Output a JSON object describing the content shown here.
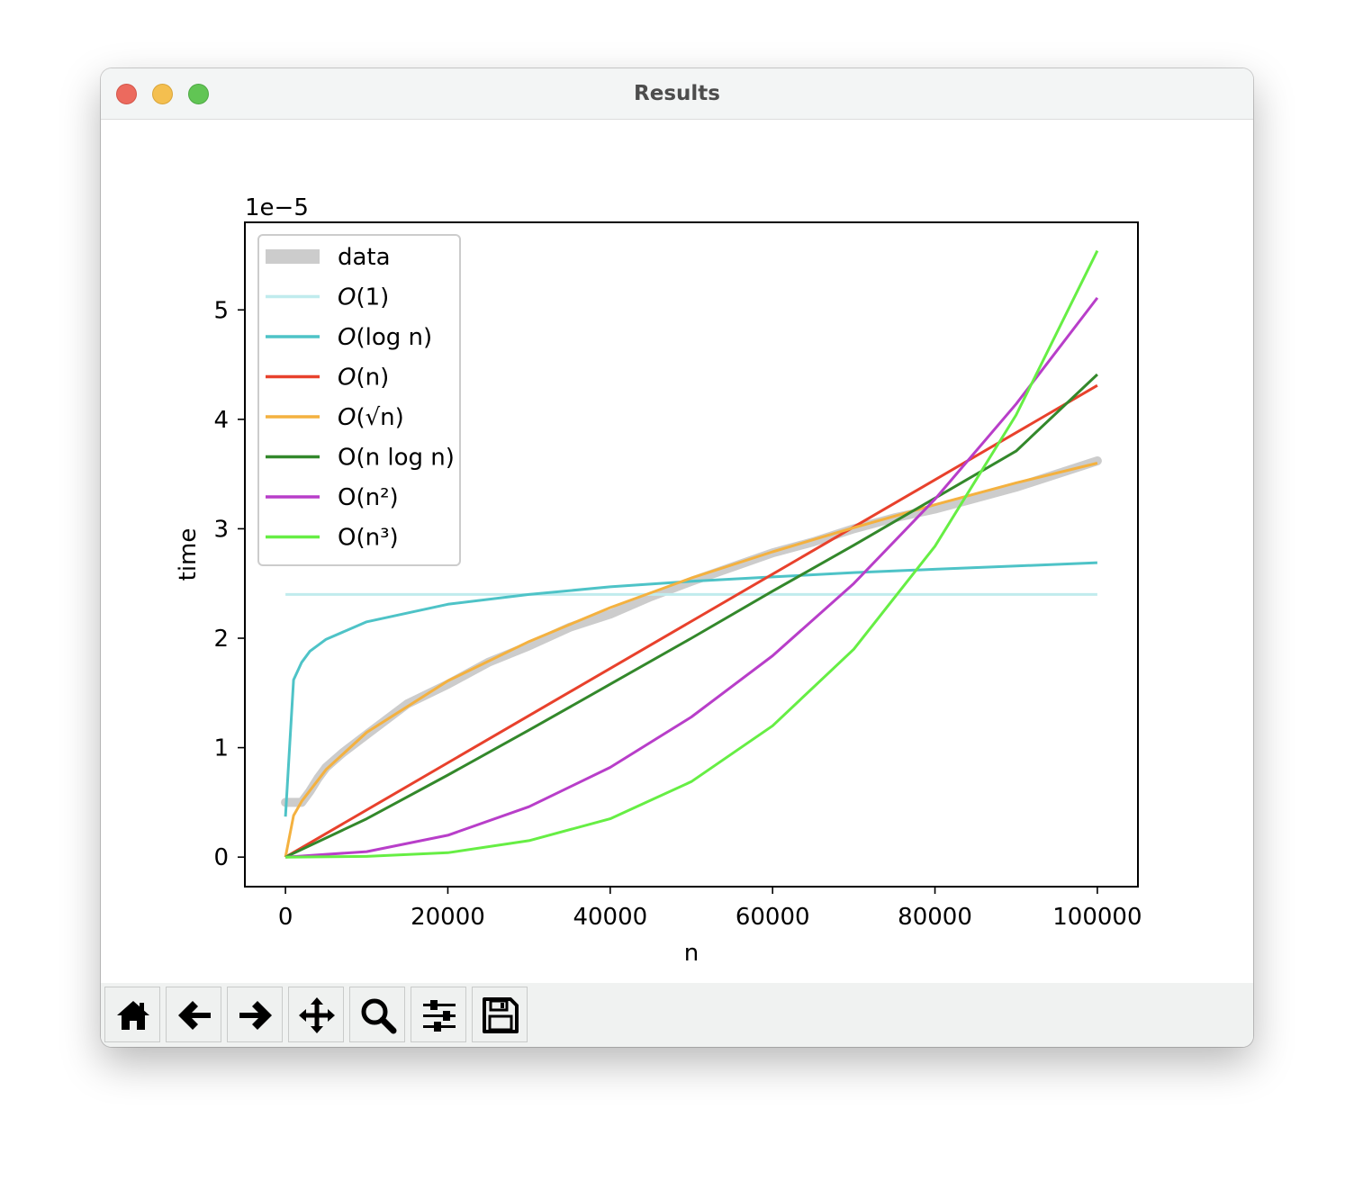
{
  "window": {
    "title": "Results"
  },
  "toolbar": {
    "buttons": [
      {
        "name": "home-button",
        "icon": "home-icon"
      },
      {
        "name": "back-button",
        "icon": "arrow-left-icon"
      },
      {
        "name": "forward-button",
        "icon": "arrow-right-icon"
      },
      {
        "name": "pan-button",
        "icon": "move-icon"
      },
      {
        "name": "zoom-button",
        "icon": "magnifier-icon"
      },
      {
        "name": "configure-subplots-button",
        "icon": "sliders-icon"
      },
      {
        "name": "save-button",
        "icon": "floppy-disk-icon"
      }
    ]
  },
  "chart_data": {
    "type": "line",
    "xlabel": "n",
    "ylabel": "time",
    "offset_text": "1e−5",
    "x_ticks": [
      "0",
      "20000",
      "40000",
      "60000",
      "80000",
      "100000"
    ],
    "y_ticks": [
      "0",
      "1",
      "2",
      "3",
      "4",
      "5"
    ],
    "xlim": [
      -5000,
      105000
    ],
    "ylim": [
      -0.27,
      5.8
    ],
    "y_scale_note": "values in units of 1e-5",
    "legend_position": "upper-left",
    "legend": [
      {
        "prefix": "",
        "label": "data"
      },
      {
        "prefix": "O",
        "label": "(1)"
      },
      {
        "prefix": "O",
        "label": "(log n)"
      },
      {
        "prefix": "O",
        "label": "(n)"
      },
      {
        "prefix": "O",
        "label": "(√n)"
      },
      {
        "prefix": "O",
        "label": "(n log n)"
      },
      {
        "prefix": "O",
        "label": "(n²)"
      },
      {
        "prefix": "O",
        "label": "(n³)"
      }
    ],
    "series": [
      {
        "name": "data",
        "color": "#cccccc",
        "width": 10,
        "x": [
          0,
          1000,
          2000,
          3000,
          4000,
          5000,
          7000,
          10000,
          15000,
          20000,
          25000,
          30000,
          35000,
          40000,
          45000,
          50000,
          55000,
          60000,
          65000,
          70000,
          75000,
          80000,
          85000,
          90000,
          95000,
          100000
        ],
        "y": [
          0.5,
          0.5,
          0.5,
          0.6,
          0.72,
          0.82,
          0.95,
          1.12,
          1.4,
          1.58,
          1.78,
          1.93,
          2.1,
          2.22,
          2.38,
          2.52,
          2.65,
          2.78,
          2.88,
          3.0,
          3.1,
          3.18,
          3.28,
          3.38,
          3.5,
          3.62
        ]
      },
      {
        "name": "O(1)",
        "color": "#c0ebed",
        "width": 3,
        "x": [
          0,
          100000
        ],
        "y": [
          2.4,
          2.4
        ]
      },
      {
        "name": "O(log n)",
        "color": "#4ec3c7",
        "width": 3,
        "x": [
          0,
          1000,
          2000,
          3000,
          5000,
          10000,
          20000,
          30000,
          40000,
          50000,
          60000,
          70000,
          80000,
          90000,
          100000
        ],
        "y": [
          0.37,
          1.62,
          1.78,
          1.88,
          1.99,
          2.15,
          2.31,
          2.4,
          2.47,
          2.52,
          2.56,
          2.6,
          2.63,
          2.66,
          2.69
        ]
      },
      {
        "name": "O(n)",
        "color": "#e8412c",
        "width": 3,
        "x": [
          0,
          100000
        ],
        "y": [
          0.0,
          4.31
        ]
      },
      {
        "name": "O(√n)",
        "color": "#f4b13f",
        "width": 3,
        "x": [
          0,
          1000,
          2000,
          5000,
          10000,
          20000,
          30000,
          40000,
          50000,
          60000,
          70000,
          80000,
          90000,
          100000
        ],
        "y": [
          0.0,
          0.38,
          0.51,
          0.8,
          1.14,
          1.61,
          1.97,
          2.28,
          2.55,
          2.79,
          3.01,
          3.22,
          3.42,
          3.6
        ]
      },
      {
        "name": "O(n log n)",
        "color": "#33882b",
        "width": 3,
        "x": [
          0,
          10000,
          20000,
          30000,
          40000,
          50000,
          60000,
          70000,
          80000,
          90000,
          100000
        ],
        "y": [
          0.0,
          0.35,
          0.75,
          1.16,
          1.58,
          2.0,
          2.43,
          2.85,
          3.28,
          3.71,
          4.41
        ]
      },
      {
        "name": "O(n²)",
        "color": "#b83ec9",
        "width": 3,
        "x": [
          0,
          10000,
          20000,
          30000,
          40000,
          50000,
          60000,
          70000,
          80000,
          90000,
          100000
        ],
        "y": [
          0.0,
          0.05,
          0.2,
          0.46,
          0.82,
          1.28,
          1.84,
          2.5,
          3.27,
          4.14,
          5.11
        ]
      },
      {
        "name": "O(n³)",
        "color": "#66ee44",
        "width": 3,
        "x": [
          0,
          10000,
          20000,
          30000,
          40000,
          50000,
          60000,
          70000,
          80000,
          90000,
          100000
        ],
        "y": [
          0.0,
          0.006,
          0.04,
          0.15,
          0.35,
          0.69,
          1.2,
          1.9,
          2.84,
          4.04,
          5.54
        ]
      }
    ]
  }
}
